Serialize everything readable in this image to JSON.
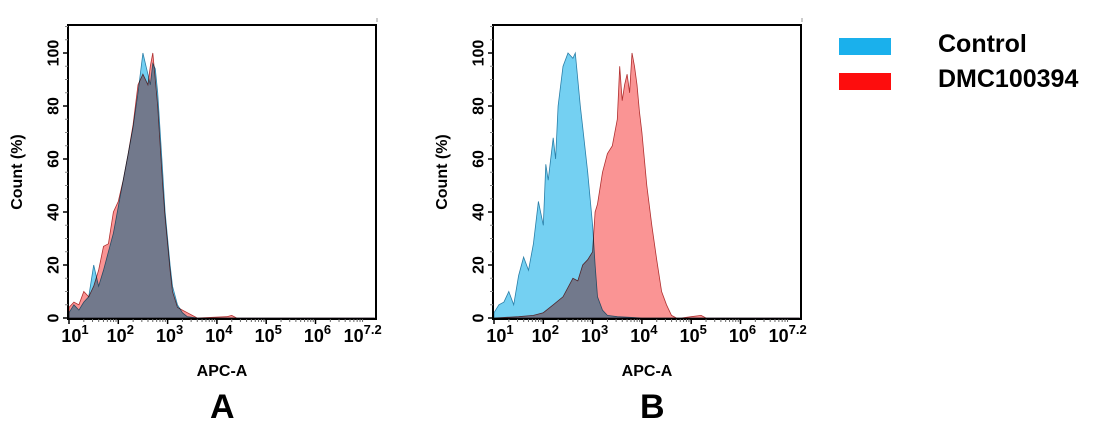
{
  "legend": {
    "items": [
      {
        "label": "Control",
        "color": "#1ab0ec"
      },
      {
        "label": "DMC100394",
        "color": "#fd0d0d"
      }
    ]
  },
  "panels": [
    {
      "letter": "A"
    },
    {
      "letter": "B"
    }
  ],
  "chart_data": [
    {
      "type": "area",
      "panel": "A",
      "title": "",
      "xlabel": "APC-A",
      "ylabel": "Count  (%)",
      "xscale": "log10",
      "xlim_log10": [
        1,
        7.2
      ],
      "ylim": [
        0,
        110
      ],
      "xticks": [
        "10^1",
        "10^2",
        "10^3",
        "10^4",
        "10^5",
        "10^6",
        "10^7.2"
      ],
      "yticks": [
        0,
        20,
        40,
        60,
        80,
        100
      ],
      "grid": false,
      "legend_position": "right (shared)",
      "series": [
        {
          "name": "Control",
          "color": "#5cc8f0",
          "x_log10": [
            1.0,
            1.1,
            1.2,
            1.3,
            1.4,
            1.5,
            1.6,
            1.7,
            1.8,
            1.9,
            2.0,
            2.1,
            2.2,
            2.3,
            2.4,
            2.5,
            2.6,
            2.65,
            2.7,
            2.75,
            2.8,
            2.85,
            2.9,
            2.95,
            3.0,
            3.05,
            3.1,
            3.2,
            3.3,
            3.4,
            3.6,
            4.0,
            5.0,
            7.2
          ],
          "y": [
            2,
            5,
            3,
            6,
            8,
            20,
            12,
            18,
            25,
            32,
            42,
            52,
            62,
            72,
            85,
            100,
            92,
            88,
            96,
            94,
            85,
            70,
            55,
            40,
            30,
            20,
            12,
            5,
            2,
            0.5,
            0,
            0,
            0,
            0
          ]
        },
        {
          "name": "DMC100394",
          "color": "#f87070",
          "x_log10": [
            1.0,
            1.1,
            1.2,
            1.3,
            1.4,
            1.5,
            1.6,
            1.7,
            1.8,
            1.9,
            2.0,
            2.1,
            2.2,
            2.3,
            2.4,
            2.5,
            2.6,
            2.65,
            2.7,
            2.75,
            2.8,
            2.85,
            2.9,
            2.95,
            3.0,
            3.05,
            3.1,
            3.2,
            3.3,
            3.4,
            3.5,
            3.6,
            4.2,
            4.3,
            4.4,
            7.2
          ],
          "y": [
            4,
            6,
            5,
            10,
            8,
            12,
            18,
            27,
            28,
            40,
            44,
            52,
            62,
            73,
            88,
            92,
            88,
            95,
            100,
            90,
            80,
            65,
            50,
            38,
            28,
            18,
            10,
            4,
            3,
            2,
            1,
            0,
            0.5,
            1,
            0,
            0
          ]
        }
      ]
    },
    {
      "type": "area",
      "panel": "B",
      "title": "",
      "xlabel": "APC-A",
      "ylabel": "Count  (%)",
      "xscale": "log10",
      "xlim_log10": [
        1,
        7.2
      ],
      "ylim": [
        0,
        110
      ],
      "xticks": [
        "10^1",
        "10^2",
        "10^3",
        "10^4",
        "10^5",
        "10^6",
        "10^7.2"
      ],
      "yticks": [
        0,
        20,
        40,
        60,
        80,
        100
      ],
      "grid": false,
      "legend_position": "right (shared)",
      "series": [
        {
          "name": "Control",
          "color": "#5cc8f0",
          "x_log10": [
            1.0,
            1.1,
            1.2,
            1.3,
            1.4,
            1.5,
            1.6,
            1.7,
            1.8,
            1.9,
            2.0,
            2.05,
            2.1,
            2.2,
            2.25,
            2.3,
            2.4,
            2.5,
            2.6,
            2.65,
            2.7,
            2.75,
            2.8,
            2.9,
            3.0,
            3.05,
            3.1,
            3.2,
            3.3,
            3.5,
            4.0,
            5.0,
            7.2
          ],
          "y": [
            2,
            5,
            6,
            10,
            5,
            16,
            23,
            18,
            28,
            44,
            35,
            58,
            52,
            68,
            60,
            80,
            95,
            100,
            98,
            100,
            90,
            80,
            72,
            55,
            35,
            20,
            8,
            3,
            1,
            0.5,
            0,
            0,
            0
          ]
        },
        {
          "name": "DMC100394",
          "color": "#f87070",
          "x_log10": [
            1.0,
            1.5,
            1.8,
            2.0,
            2.2,
            2.4,
            2.6,
            2.7,
            2.8,
            2.9,
            3.0,
            3.05,
            3.1,
            3.2,
            3.3,
            3.4,
            3.5,
            3.55,
            3.6,
            3.65,
            3.7,
            3.75,
            3.8,
            3.85,
            3.9,
            3.95,
            4.0,
            4.1,
            4.2,
            4.3,
            4.4,
            4.5,
            4.6,
            4.7,
            4.8,
            5.0,
            5.2,
            5.3,
            7.2
          ],
          "y": [
            0,
            0.5,
            1,
            2,
            5,
            8,
            15,
            14,
            20,
            22,
            25,
            40,
            43,
            55,
            62,
            65,
            75,
            95,
            82,
            88,
            92,
            85,
            100,
            95,
            88,
            78,
            70,
            50,
            35,
            22,
            10,
            5,
            1,
            0,
            0,
            0.5,
            1,
            0,
            0
          ]
        }
      ]
    }
  ]
}
